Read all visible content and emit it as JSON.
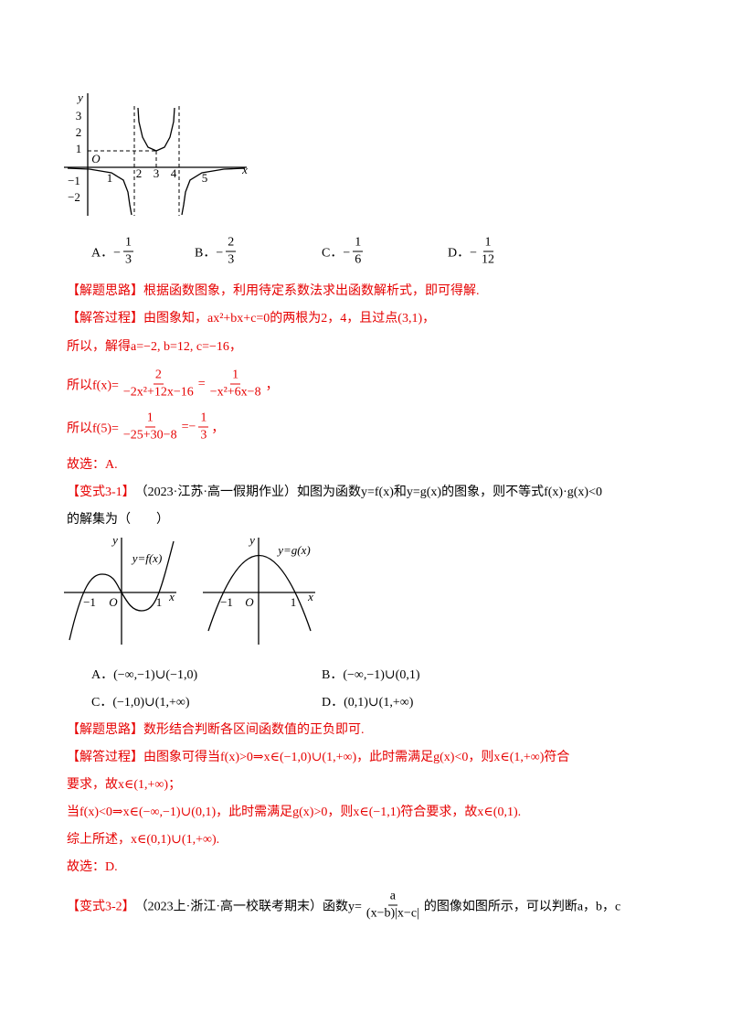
{
  "figure1": {
    "labels": [
      "y",
      "3",
      "2",
      "1",
      "O",
      "1",
      "2",
      "3",
      "4",
      "5",
      "x",
      "−1",
      "−2"
    ]
  },
  "figure2": {
    "labels": [
      "y",
      "y=f(x)",
      "−1",
      "O",
      "1",
      "x",
      "y",
      "y=g(x)",
      "−1",
      "O",
      "1",
      "x"
    ]
  },
  "blocks": [
    {
      "color": "#000",
      "cols": [
        [
          "A．−",
          {
            "frac": [
              "1",
              "3"
            ]
          }
        ],
        [
          "B．−",
          {
            "frac": [
              "2",
              "3"
            ]
          }
        ],
        [
          "C．−",
          {
            "frac": [
              "1",
              "6"
            ]
          }
        ],
        [
          "D．−",
          {
            "frac": [
              "1",
              "12"
            ]
          }
        ]
      ]
    },
    {
      "color": "#e60000",
      "cols": [
        [
          "【解题思路】根据函数图象，利用待定系数法求出函数解析式，即可得解."
        ]
      ]
    },
    {
      "color": "#e60000",
      "cols": [
        [
          "【解答过程】由图象知，ax²+bx+c=0的两根为2，4，且过点(3,1)，"
        ]
      ]
    },
    {
      "color": "#e60000",
      "cols": [
        [
          "所以，解得a=−2, b=12, c=−16，"
        ]
      ]
    },
    {
      "color": "#e60000",
      "cols": [
        [
          "所以f(x)=",
          {
            "frac": [
              "2",
              "−2x²+12x−16"
            ]
          },
          "=",
          {
            "frac": [
              "1",
              "−x²+6x−8"
            ]
          },
          "，"
        ]
      ]
    },
    {
      "color": "#e60000",
      "cols": [
        [
          "所以f(5)=",
          {
            "frac": [
              "1",
              "−25+30−8"
            ]
          },
          "=−",
          {
            "frac": [
              "1",
              "3"
            ]
          },
          "，"
        ]
      ]
    },
    {
      "color": "#e60000",
      "cols": [
        [
          "故选：A."
        ]
      ]
    },
    {
      "color": "#000",
      "cols": [
        [
          {
            "t": "【变式3-1】",
            "c": "#e60000"
          },
          "（2023·江苏·高一假期作业）如图为函数y=f(x)和y=g(x)的图象，则不等式f(x)·g(x)<0"
        ]
      ]
    },
    {
      "color": "#000",
      "cols": [
        [
          "的解集为（　　）"
        ]
      ]
    },
    {
      "color": "#000",
      "cols": [
        [
          "A．(−∞,−1)∪(−1,0)"
        ],
        [
          "B．(−∞,−1)∪(0,1)"
        ]
      ]
    },
    {
      "color": "#000",
      "cols": [
        [
          "C．(−1,0)∪(1,+∞)"
        ],
        [
          "D．(0,1)∪(1,+∞)"
        ]
      ]
    },
    {
      "color": "#e60000",
      "cols": [
        [
          "【解题思路】数形结合判断各区间函数值的正负即可."
        ]
      ]
    },
    {
      "color": "#e60000",
      "cols": [
        [
          "【解答过程】由图象可得当f(x)>0⇒x∈(−1,0)∪(1,+∞)，此时需满足g(x)<0，则x∈(1,+∞)符合"
        ]
      ]
    },
    {
      "color": "#e60000",
      "cols": [
        [
          "要求，故x∈(1,+∞)；"
        ]
      ]
    },
    {
      "color": "#e60000",
      "cols": [
        [
          "当f(x)<0⇒x∈(−∞,−1)∪(0,1)，此时需满足g(x)>0，则x∈(−1,1)符合要求，故x∈(0,1)."
        ]
      ]
    },
    {
      "color": "#e60000",
      "cols": [
        [
          "综上所述，x∈(0,1)∪(1,+∞)."
        ]
      ]
    },
    {
      "color": "#e60000",
      "cols": [
        [
          "故选：D."
        ]
      ]
    },
    {
      "color": "#000",
      "cols": [
        [
          {
            "t": "【变式3-2】",
            "c": "#e60000"
          },
          "（2023上·浙江·高一校联考期末）函数y=",
          {
            "frac": [
              "a",
              "(x−b)|x−c|"
            ]
          },
          "的图像如图所示，可以判断a，b，c"
        ]
      ]
    }
  ]
}
